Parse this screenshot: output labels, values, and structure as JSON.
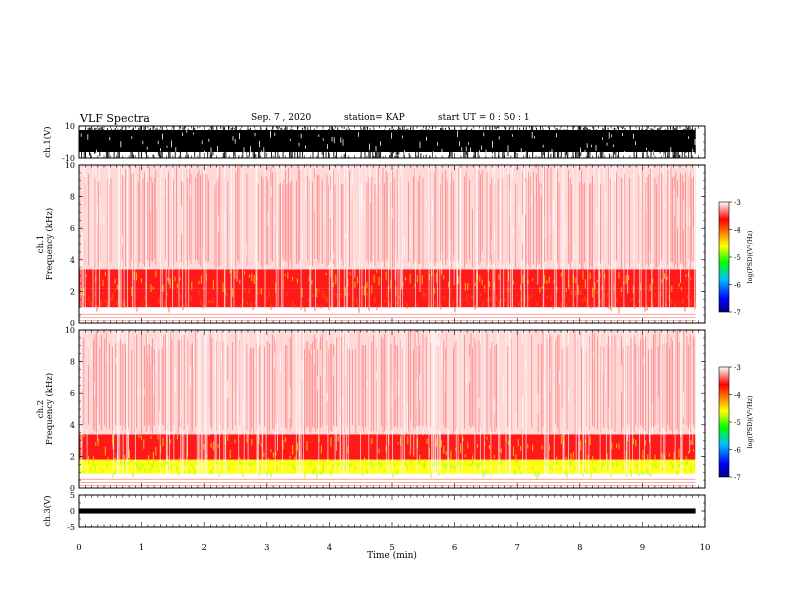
{
  "header": {
    "title": "VLF Spectra",
    "date": "Sep. 7 , 2020",
    "station": "station= KAP",
    "start": "start UT =  0 : 50 : 1"
  },
  "colorbar": {
    "label": "log(PSD)(V²/Hz)",
    "ticks": [
      "-3",
      "-4",
      "-5",
      "-6",
      "-7"
    ],
    "range": [
      -7,
      -3
    ],
    "colors": [
      "#0000ff",
      "#00c0ff",
      "#00ff00",
      "#ffff00",
      "#ff8000",
      "#ff0000",
      "#ffffff"
    ]
  },
  "chart_data": [
    {
      "type": "line",
      "panel": "ch1-waveform",
      "ylabel": "ch.1(V)",
      "ylim": [
        -10,
        10
      ],
      "yticks": [
        "10",
        "-10"
      ],
      "xlim": [
        0,
        10
      ],
      "description_values": {
        "envelope_min": -10,
        "envelope_max": 10
      }
    },
    {
      "type": "heatmap",
      "panel": "ch1-spectrogram",
      "ylabel": "ch.1\nFrequency (kHz)",
      "ylim": [
        0,
        10
      ],
      "yticks": [
        "0",
        "2",
        "4",
        "6",
        "8",
        "10"
      ],
      "xlim": [
        0,
        10
      ],
      "bands": [
        {
          "f_low": 1.0,
          "f_high": 2.2,
          "level": -4.0
        },
        {
          "f_low": 2.2,
          "f_high": 3.4,
          "level": -3.6
        },
        {
          "f_low": 3.4,
          "f_high": 10,
          "level": -3.2
        }
      ]
    },
    {
      "type": "heatmap",
      "panel": "ch2-spectrogram",
      "ylabel": "ch.2\nFrequency (kHz)",
      "ylim": [
        0,
        10
      ],
      "yticks": [
        "0",
        "2",
        "4",
        "6",
        "8",
        "10"
      ],
      "xlim": [
        0,
        10
      ],
      "bands": [
        {
          "f_low": 0.9,
          "f_high": 1.8,
          "level": -5.0
        },
        {
          "f_low": 1.8,
          "f_high": 3.4,
          "level": -3.8
        },
        {
          "f_low": 3.4,
          "f_high": 10,
          "level": -3.2
        }
      ]
    },
    {
      "type": "line",
      "panel": "ch3-waveform",
      "ylabel": "ch.3(V)",
      "ylim": [
        -5,
        5
      ],
      "yticks": [
        "5",
        "0",
        "-5"
      ],
      "xlim": [
        0,
        10
      ],
      "xlabel": "Time (min)",
      "xticks": [
        "0",
        "1",
        "2",
        "3",
        "4",
        "5",
        "6",
        "7",
        "8",
        "9",
        "10"
      ],
      "description_values": {
        "envelope_min": -0.8,
        "envelope_max": 0.8
      }
    }
  ]
}
